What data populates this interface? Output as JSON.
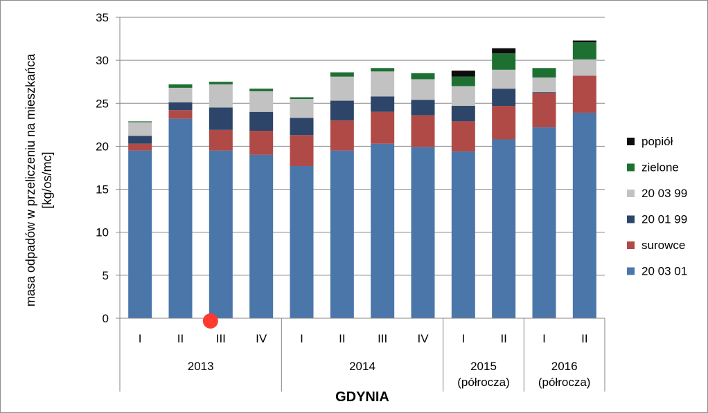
{
  "chart_data": {
    "type": "bar",
    "stacked": true,
    "ylabel": [
      "masa odpadów w przeliczeniu na mieszkańca",
      "[kg/os/mc]"
    ],
    "xlabel": "GDYNIA",
    "ylim": [
      0,
      35
    ],
    "yticks": [
      "0",
      "5",
      "10",
      "15",
      "20",
      "25",
      "30",
      "35"
    ],
    "grid": true,
    "legend_position": "right",
    "categories": [
      "I",
      "II",
      "III",
      "IV",
      "I",
      "II",
      "III",
      "IV",
      "I",
      "II",
      "I",
      "II"
    ],
    "groups": [
      {
        "lines": [
          "2013"
        ],
        "count": 4
      },
      {
        "lines": [
          "2014"
        ],
        "count": 4
      },
      {
        "lines": [
          "2015",
          "(półrocza)"
        ],
        "count": 2
      },
      {
        "lines": [
          "2016",
          "(półrocza)"
        ],
        "count": 2
      }
    ],
    "series": [
      {
        "name": "20 03 01",
        "color": "#4a76aa",
        "values": [
          19.5,
          23.2,
          19.5,
          19.0,
          17.7,
          19.5,
          20.3,
          19.9,
          19.4,
          20.8,
          22.2,
          23.9
        ]
      },
      {
        "name": "surowce",
        "color": "#b04a47",
        "values": [
          0.8,
          1.0,
          2.4,
          2.8,
          3.6,
          3.5,
          3.7,
          3.7,
          3.5,
          3.9,
          4.0,
          4.3
        ]
      },
      {
        "name": "20 01 99",
        "color": "#2d4568",
        "values": [
          0.9,
          0.9,
          2.6,
          2.2,
          2.0,
          2.3,
          1.8,
          1.8,
          1.8,
          2.0,
          0.1,
          0.0
        ]
      },
      {
        "name": "20 03 99",
        "color": "#c2c2c2",
        "values": [
          1.6,
          1.7,
          2.7,
          2.4,
          2.2,
          2.8,
          2.9,
          2.4,
          2.3,
          2.2,
          1.7,
          1.9
        ]
      },
      {
        "name": "zielone",
        "color": "#1e7032",
        "values": [
          0.1,
          0.4,
          0.3,
          0.3,
          0.2,
          0.5,
          0.4,
          0.7,
          1.1,
          1.9,
          1.1,
          2.0
        ]
      },
      {
        "name": "popiół",
        "color": "#0d0d0d",
        "values": [
          0.0,
          0.0,
          0.0,
          0.0,
          0.0,
          0.0,
          0.0,
          0.0,
          0.7,
          0.6,
          0.0,
          0.2
        ]
      }
    ],
    "legend_order": [
      "popiół",
      "zielone",
      "20 03 99",
      "20 01 99",
      "surowce",
      "20 03 01"
    ],
    "marker": {
      "color": "#ff3b2f",
      "position": "on x-axis under category 3 (III 2013)"
    }
  }
}
